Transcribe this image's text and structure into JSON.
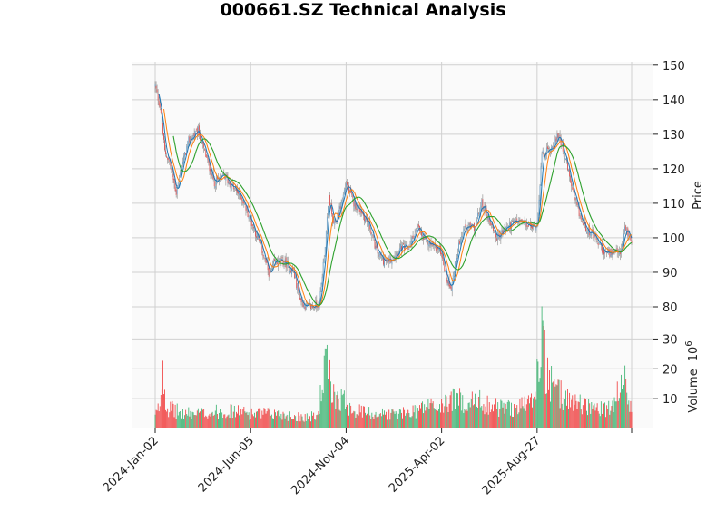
{
  "chart_data": {
    "type": "candlestick",
    "title": "000661.SZ Technical Analysis",
    "price_panel": {
      "ylabel": "Price",
      "ylim": [
        75,
        151
      ],
      "yticks": [
        80,
        90,
        100,
        110,
        120,
        130,
        140,
        150
      ],
      "moving_averages": [
        {
          "name": "MA short",
          "color": "#1f77b4"
        },
        {
          "name": "MA medium",
          "color": "#ff7f0e"
        },
        {
          "name": "MA long",
          "color": "#2ca02c"
        }
      ]
    },
    "volume_panel": {
      "ylabel": "Volume",
      "scale_label": "10",
      "scale_exp": "6",
      "ylim": [
        0,
        35
      ],
      "yticks": [
        10,
        20,
        30
      ],
      "unit_multiplier": 1000000
    },
    "x_ticklabels": [
      {
        "label": "2024-Jan-02",
        "index": 0
      },
      {
        "label": "2024-Jun-05",
        "index": 100
      },
      {
        "label": "2024-Nov-04",
        "index": 200
      },
      {
        "label": "2025-Apr-02",
        "index": 300
      },
      {
        "label": "2025-Aug-27",
        "index": 400
      }
    ],
    "total_bars": 500,
    "close_keypoints": [
      [
        0,
        144
      ],
      [
        5,
        138
      ],
      [
        10,
        125
      ],
      [
        15,
        122
      ],
      [
        22,
        113
      ],
      [
        28,
        121
      ],
      [
        35,
        128
      ],
      [
        45,
        131
      ],
      [
        55,
        122
      ],
      [
        62,
        116
      ],
      [
        72,
        118
      ],
      [
        80,
        115
      ],
      [
        90,
        112
      ],
      [
        100,
        105
      ],
      [
        110,
        98
      ],
      [
        120,
        89
      ],
      [
        125,
        93
      ],
      [
        135,
        93
      ],
      [
        145,
        90
      ],
      [
        152,
        82
      ],
      [
        158,
        80
      ],
      [
        165,
        80
      ],
      [
        172,
        81
      ],
      [
        178,
        98
      ],
      [
        182,
        112
      ],
      [
        187,
        103
      ],
      [
        195,
        110
      ],
      [
        200,
        116
      ],
      [
        208,
        110
      ],
      [
        215,
        108
      ],
      [
        225,
        103
      ],
      [
        232,
        96
      ],
      [
        240,
        93
      ],
      [
        248,
        94
      ],
      [
        257,
        97
      ],
      [
        265,
        97
      ],
      [
        275,
        103
      ],
      [
        282,
        99
      ],
      [
        290,
        98
      ],
      [
        300,
        96
      ],
      [
        305,
        88
      ],
      [
        310,
        86
      ],
      [
        318,
        98
      ],
      [
        325,
        103
      ],
      [
        335,
        103
      ],
      [
        342,
        110
      ],
      [
        350,
        105
      ],
      [
        358,
        100
      ],
      [
        368,
        103
      ],
      [
        380,
        105
      ],
      [
        395,
        103
      ],
      [
        400,
        104
      ],
      [
        405,
        124
      ],
      [
        410,
        125
      ],
      [
        418,
        127
      ],
      [
        423,
        130
      ],
      [
        432,
        120
      ],
      [
        440,
        110
      ],
      [
        448,
        104
      ],
      [
        460,
        100
      ],
      [
        470,
        96
      ],
      [
        478,
        95
      ],
      [
        488,
        96
      ],
      [
        492,
        103
      ],
      [
        499,
        99
      ]
    ],
    "volume_keypoints": [
      [
        0,
        4
      ],
      [
        5,
        8
      ],
      [
        8,
        22
      ],
      [
        12,
        7
      ],
      [
        30,
        5
      ],
      [
        50,
        5
      ],
      [
        75,
        6
      ],
      [
        100,
        5
      ],
      [
        125,
        5
      ],
      [
        150,
        4
      ],
      [
        170,
        4
      ],
      [
        175,
        15
      ],
      [
        180,
        23
      ],
      [
        185,
        12
      ],
      [
        195,
        10
      ],
      [
        210,
        6
      ],
      [
        230,
        5
      ],
      [
        260,
        5
      ],
      [
        290,
        8
      ],
      [
        300,
        7
      ],
      [
        310,
        10
      ],
      [
        325,
        9
      ],
      [
        340,
        9
      ],
      [
        360,
        7
      ],
      [
        380,
        7
      ],
      [
        398,
        10
      ],
      [
        402,
        24
      ],
      [
        405,
        33
      ],
      [
        410,
        17
      ],
      [
        420,
        12
      ],
      [
        440,
        9
      ],
      [
        460,
        7
      ],
      [
        470,
        6
      ],
      [
        480,
        7
      ],
      [
        485,
        12
      ],
      [
        490,
        17
      ],
      [
        499,
        7
      ]
    ],
    "up_color": "#3cb371",
    "down_color": "#f04040"
  }
}
